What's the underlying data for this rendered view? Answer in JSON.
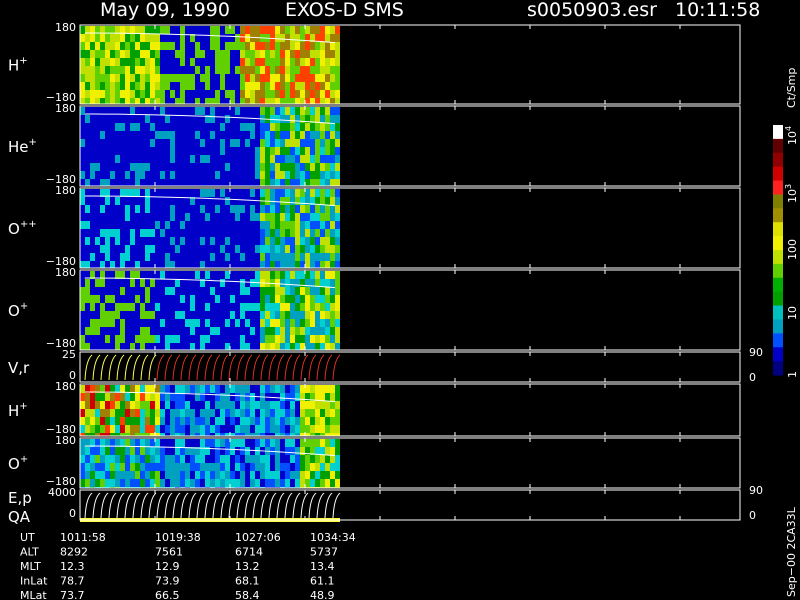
{
  "header": {
    "date": "May 09, 1990",
    "instrument": "EXOS-D SMS",
    "file": "s0050903.esr",
    "time": "10:11:58"
  },
  "panels": [
    {
      "label": "H",
      "charge": "+",
      "ticks": [
        "180",
        "−180"
      ]
    },
    {
      "label": "He",
      "charge": "+",
      "ticks": [
        "180",
        "−180"
      ]
    },
    {
      "label": "O",
      "charge": "++",
      "ticks": [
        "180",
        "−180"
      ]
    },
    {
      "label": "O",
      "charge": "+",
      "ticks": [
        "180",
        "−180"
      ]
    },
    {
      "label": "V,r",
      "ticks": [
        "25",
        "0"
      ],
      "right_ticks": [
        "90",
        "0"
      ]
    },
    {
      "label": "H",
      "charge": "+",
      "ticks": [
        "180",
        "−180"
      ]
    },
    {
      "label": "O",
      "charge": "+",
      "ticks": [
        "180",
        "−180"
      ]
    },
    {
      "label": "E,p",
      "label2": "QA",
      "ticks": [
        "4000",
        "0"
      ],
      "right_ticks": [
        "90",
        "0"
      ]
    }
  ],
  "colorbar": {
    "unit": "Ct/Smp",
    "ticks": [
      {
        "text": "10",
        "sup": "4"
      },
      {
        "text": "10",
        "sup": "3"
      },
      {
        "text": "100"
      },
      {
        "text": "10"
      },
      {
        "text": "1"
      }
    ]
  },
  "ephemeris": {
    "rows": [
      [
        "UT",
        "1011:58",
        "1019:38",
        "1027:06",
        "1034:34"
      ],
      [
        "ALT",
        "8292",
        "7561",
        "6714",
        "5737"
      ],
      [
        "MLT",
        "12.3",
        "12.9",
        "13.2",
        "13.4"
      ],
      [
        "InLat",
        "78.7",
        "73.9",
        "68.1",
        "61.1"
      ],
      [
        "MLat",
        "73.7",
        "66.5",
        "58.4",
        "48.9"
      ]
    ]
  },
  "footer": "Sep−00 2CA33L"
}
